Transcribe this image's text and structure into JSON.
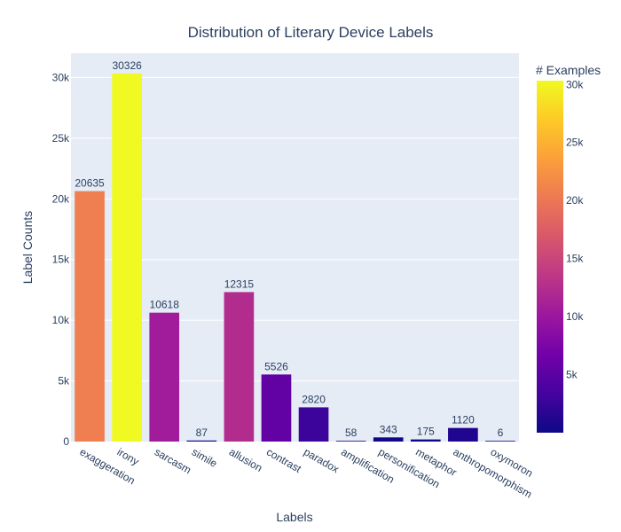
{
  "chart_data": {
    "type": "bar",
    "title": "Distribution of Literary Device Labels",
    "xlabel": "Labels",
    "ylabel": "Label Counts",
    "categories": [
      "exaggeration",
      "irony",
      "sarcasm",
      "simile",
      "allusion",
      "contrast",
      "paradox",
      "amplification",
      "personification",
      "metaphor",
      "anthropomorphism",
      "oxymoron"
    ],
    "values": [
      20635,
      30326,
      10618,
      87,
      12315,
      5526,
      2820,
      58,
      343,
      175,
      1120,
      6
    ],
    "data_labels": [
      "20635",
      "30326",
      "10618",
      "87",
      "12315",
      "5526",
      "2820",
      "58",
      "343",
      "175",
      "1120",
      "6"
    ],
    "ylim": [
      0,
      32000
    ],
    "yticks": [
      0,
      5000,
      10000,
      15000,
      20000,
      25000,
      30000
    ],
    "ytick_labels": [
      "0",
      "5k",
      "10k",
      "15k",
      "20k",
      "25k",
      "30k"
    ],
    "grid": true,
    "colorbar": {
      "title": "# Examples",
      "range": [
        6,
        30326
      ],
      "ticks": [
        5000,
        10000,
        15000,
        20000,
        25000,
        30000
      ],
      "tick_labels": [
        "5k",
        "10k",
        "15k",
        "20k",
        "25k",
        "30k"
      ],
      "colorscale": [
        "#0d0887",
        "#46039f",
        "#7201a8",
        "#9c179e",
        "#bd3786",
        "#d8576b",
        "#ed7953",
        "#fb9f3a",
        "#fdca26",
        "#f0f921"
      ]
    },
    "plot_background": "#e5ecf6"
  }
}
